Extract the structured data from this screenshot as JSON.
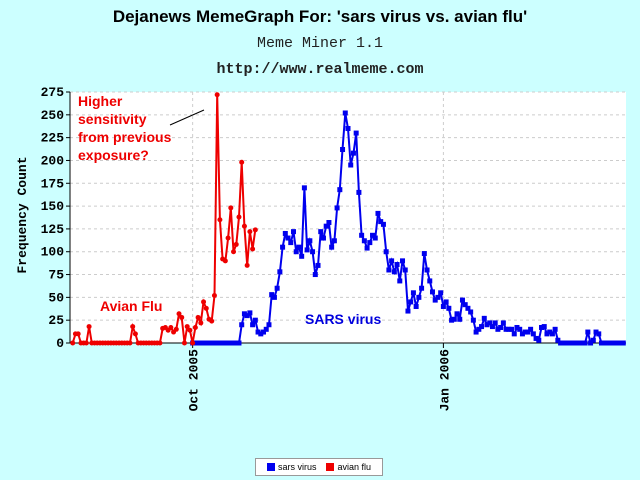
{
  "chart_data": {
    "type": "line",
    "title": "Dejanews MemeGraph For: 'sars virus vs. avian flu'",
    "subtitle": "Meme Miner 1.1",
    "url": "http://www.realmeme.com",
    "ylabel": "Frequency Count",
    "ylim": [
      0,
      275
    ],
    "yticks": [
      "0",
      "25",
      "50",
      "75",
      "100",
      "125",
      "150",
      "175",
      "200",
      "225",
      "250",
      "275"
    ],
    "xticks": [
      "Oct 2005",
      "Jan 2006"
    ],
    "grid": true,
    "legend_position": "bottom",
    "annotations": {
      "red_note": [
        "Higher",
        "sensitivity",
        "from previous",
        "exposure?"
      ],
      "avian_label": "Avian Flu",
      "sars_label": "SARS virus"
    },
    "series": [
      {
        "name": "sars virus",
        "color": "#0000ee",
        "values": [
          [
            0,
            0
          ],
          [
            1,
            0
          ],
          [
            2,
            0
          ],
          [
            3,
            0
          ],
          [
            4,
            0
          ],
          [
            5,
            0
          ],
          [
            6,
            0
          ],
          [
            7,
            0
          ],
          [
            8,
            0
          ],
          [
            9,
            0
          ],
          [
            10,
            0
          ],
          [
            11,
            0
          ],
          [
            12,
            0
          ],
          [
            13,
            0
          ],
          [
            14,
            0
          ],
          [
            15,
            0
          ],
          [
            16,
            0
          ],
          [
            17,
            0
          ],
          [
            18,
            20
          ],
          [
            19,
            32
          ],
          [
            20,
            30
          ],
          [
            21,
            33
          ],
          [
            22,
            20
          ],
          [
            23,
            25
          ],
          [
            24,
            12
          ],
          [
            25,
            10
          ],
          [
            26,
            12
          ],
          [
            27,
            15
          ],
          [
            28,
            20
          ],
          [
            29,
            53
          ],
          [
            30,
            50
          ],
          [
            31,
            60
          ],
          [
            32,
            78
          ],
          [
            33,
            105
          ],
          [
            34,
            120
          ],
          [
            35,
            115
          ],
          [
            36,
            110
          ],
          [
            37,
            122
          ],
          [
            38,
            100
          ],
          [
            39,
            105
          ],
          [
            40,
            95
          ],
          [
            41,
            170
          ],
          [
            42,
            102
          ],
          [
            43,
            112
          ],
          [
            44,
            100
          ],
          [
            45,
            75
          ],
          [
            46,
            85
          ],
          [
            47,
            122
          ],
          [
            48,
            115
          ],
          [
            49,
            128
          ],
          [
            50,
            132
          ],
          [
            51,
            105
          ],
          [
            52,
            112
          ],
          [
            53,
            148
          ],
          [
            54,
            168
          ],
          [
            55,
            212
          ],
          [
            56,
            252
          ],
          [
            57,
            235
          ],
          [
            58,
            195
          ],
          [
            59,
            208
          ],
          [
            60,
            230
          ],
          [
            61,
            165
          ],
          [
            62,
            118
          ],
          [
            63,
            112
          ],
          [
            64,
            104
          ],
          [
            65,
            110
          ],
          [
            66,
            118
          ],
          [
            67,
            115
          ],
          [
            68,
            142
          ],
          [
            69,
            133
          ],
          [
            70,
            130
          ],
          [
            71,
            100
          ],
          [
            72,
            80
          ],
          [
            73,
            90
          ],
          [
            74,
            78
          ],
          [
            75,
            86
          ],
          [
            76,
            68
          ],
          [
            77,
            90
          ],
          [
            78,
            80
          ],
          [
            79,
            35
          ],
          [
            80,
            45
          ],
          [
            81,
            55
          ],
          [
            82,
            40
          ],
          [
            83,
            50
          ],
          [
            84,
            60
          ],
          [
            85,
            98
          ],
          [
            86,
            80
          ],
          [
            87,
            68
          ],
          [
            88,
            56
          ],
          [
            89,
            47
          ],
          [
            90,
            50
          ],
          [
            91,
            55
          ],
          [
            92,
            40
          ],
          [
            93,
            45
          ],
          [
            94,
            38
          ],
          [
            95,
            25
          ],
          [
            96,
            26
          ],
          [
            97,
            32
          ],
          [
            98,
            26
          ],
          [
            99,
            47
          ],
          [
            100,
            42
          ],
          [
            101,
            38
          ],
          [
            102,
            34
          ],
          [
            103,
            25
          ],
          [
            104,
            12
          ],
          [
            105,
            15
          ],
          [
            106,
            18
          ],
          [
            107,
            27
          ],
          [
            108,
            20
          ],
          [
            109,
            22
          ],
          [
            110,
            18
          ],
          [
            111,
            22
          ],
          [
            112,
            15
          ],
          [
            113,
            17
          ],
          [
            114,
            22
          ],
          [
            115,
            15
          ],
          [
            116,
            15
          ],
          [
            117,
            15
          ],
          [
            118,
            10
          ],
          [
            119,
            17
          ],
          [
            120,
            15
          ],
          [
            121,
            10
          ],
          [
            122,
            12
          ],
          [
            123,
            12
          ],
          [
            124,
            15
          ],
          [
            125,
            10
          ],
          [
            126,
            5
          ],
          [
            127,
            3
          ],
          [
            128,
            17
          ],
          [
            129,
            18
          ],
          [
            130,
            10
          ],
          [
            131,
            12
          ],
          [
            132,
            10
          ],
          [
            133,
            15
          ],
          [
            134,
            3
          ],
          [
            135,
            0
          ],
          [
            136,
            0
          ],
          [
            137,
            0
          ],
          [
            138,
            0
          ],
          [
            139,
            0
          ],
          [
            140,
            0
          ],
          [
            141,
            0
          ],
          [
            142,
            0
          ],
          [
            143,
            0
          ],
          [
            144,
            0
          ],
          [
            145,
            12
          ],
          [
            146,
            0
          ],
          [
            147,
            3
          ],
          [
            148,
            12
          ],
          [
            149,
            10
          ],
          [
            150,
            0
          ],
          [
            151,
            0
          ],
          [
            152,
            0
          ],
          [
            153,
            0
          ],
          [
            154,
            0
          ],
          [
            155,
            0
          ],
          [
            156,
            0
          ],
          [
            157,
            0
          ],
          [
            158,
            0
          ]
        ]
      },
      {
        "name": "avian flu",
        "color": "#ee0000",
        "values": [
          [
            -44,
            0
          ],
          [
            -43,
            10
          ],
          [
            -42,
            10
          ],
          [
            -41,
            0
          ],
          [
            -40,
            0
          ],
          [
            -39,
            0
          ],
          [
            -38,
            18
          ],
          [
            -37,
            0
          ],
          [
            -36,
            0
          ],
          [
            -35,
            0
          ],
          [
            -34,
            0
          ],
          [
            -33,
            0
          ],
          [
            -32,
            0
          ],
          [
            -31,
            0
          ],
          [
            -30,
            0
          ],
          [
            -29,
            0
          ],
          [
            -28,
            0
          ],
          [
            -27,
            0
          ],
          [
            -26,
            0
          ],
          [
            -25,
            0
          ],
          [
            -24,
            0
          ],
          [
            -23,
            0
          ],
          [
            -22,
            18
          ],
          [
            -21,
            10
          ],
          [
            -20,
            0
          ],
          [
            -19,
            0
          ],
          [
            -18,
            0
          ],
          [
            -17,
            0
          ],
          [
            -16,
            0
          ],
          [
            -15,
            0
          ],
          [
            -14,
            0
          ],
          [
            -13,
            0
          ],
          [
            -12,
            0
          ],
          [
            -11,
            16
          ],
          [
            -10,
            17
          ],
          [
            -9,
            14
          ],
          [
            -8,
            17
          ],
          [
            -7,
            12
          ],
          [
            -6,
            15
          ],
          [
            -5,
            32
          ],
          [
            -4,
            28
          ],
          [
            -3,
            0
          ],
          [
            -2,
            18
          ],
          [
            -1,
            14
          ],
          [
            0,
            0
          ],
          [
            1,
            17
          ],
          [
            2,
            28
          ],
          [
            3,
            22
          ],
          [
            4,
            45
          ],
          [
            5,
            38
          ],
          [
            6,
            26
          ],
          [
            7,
            24
          ],
          [
            8,
            52
          ],
          [
            9,
            272
          ],
          [
            10,
            135
          ],
          [
            11,
            92
          ],
          [
            12,
            90
          ],
          [
            13,
            115
          ],
          [
            14,
            148
          ],
          [
            15,
            100
          ],
          [
            16,
            108
          ],
          [
            17,
            138
          ],
          [
            18,
            198
          ],
          [
            19,
            128
          ],
          [
            20,
            85
          ],
          [
            21,
            122
          ],
          [
            22,
            103
          ],
          [
            23,
            124
          ]
        ]
      }
    ]
  },
  "legend": {
    "items": [
      {
        "label": "sars virus",
        "color": "#0000ee"
      },
      {
        "label": "avian flu",
        "color": "#ee0000"
      }
    ]
  }
}
